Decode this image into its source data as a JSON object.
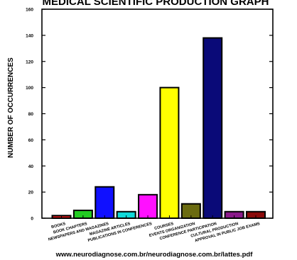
{
  "chart_data": {
    "type": "bar",
    "title": "MEDICAL SCIENTIFIC PRODUCTION GRAPH",
    "xlabel": "",
    "ylabel": "NUMBER OF OCCURRENCES",
    "ylim": [
      0,
      160
    ],
    "yticks": [
      0,
      20,
      40,
      60,
      80,
      100,
      120,
      140,
      160
    ],
    "grid": false,
    "legend": "none",
    "categories": [
      "BOOKS",
      "BOOK CHAPTERS",
      "NEWSPAPERS AND MAGAZINES",
      "MAGAZINE ARTICLES",
      "PUBLICATIONS IN CONFERENCES",
      "COURSES",
      "EVENTS ORGANIZATION",
      "CONFERENCE PARTICIPATION",
      "CULTURAL PRODUCTION",
      "APPROVAL IN PUBLIC JOB EXAMS"
    ],
    "values": [
      2,
      6,
      24,
      5,
      18,
      100,
      11,
      138,
      5,
      5
    ],
    "colors": [
      "#d81b1b",
      "#22cc22",
      "#1010ff",
      "#10d8d8",
      "#ff10ff",
      "#ffff00",
      "#6b6b10",
      "#0a0a78",
      "#8a1a8a",
      "#8a0a0a"
    ]
  },
  "footer": "www.neurodiagnose.com.br/neurodiagnose.com.br/lattes.pdf"
}
